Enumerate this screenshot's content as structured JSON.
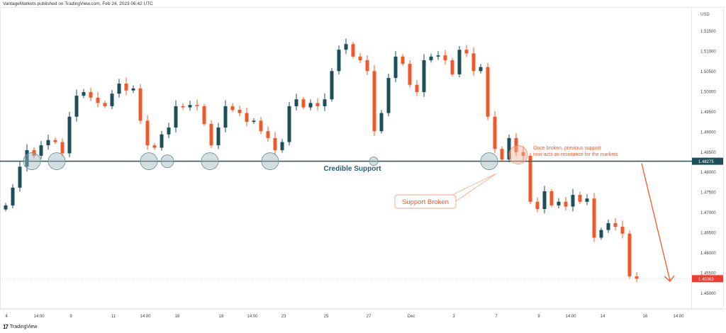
{
  "header": {
    "published": "VantageMarkets published on TradingView.com, Feb 24, 2023 06:42 UTC"
  },
  "footer": {
    "logo_text": "TradingView"
  },
  "colors": {
    "up": "#1d4f5b",
    "down": "#f0592a",
    "support_line": "#2b5d68",
    "annotation": "#f0592a",
    "circle_fill": "#9db7ba",
    "last_price_bg": "#f23b2f",
    "support_label_bg": "#1d4f5b"
  },
  "annotations": {
    "support_label": "Credible Support",
    "broken_label": "Support Broken",
    "resistance_note_line1": "Once broken, previous support",
    "resistance_note_line2": "now acts as resistance for the markets"
  },
  "chart_data": {
    "type": "candlestick",
    "title": "",
    "currency": "USD",
    "x_tick_labels": [
      "4",
      "14:00",
      "9",
      "11",
      "14:00",
      "16",
      "18",
      "14:00",
      "23",
      "25",
      "27",
      "Dec",
      "3",
      "7",
      "9",
      "14:00",
      "14",
      "16",
      "14:00"
    ],
    "y_tick_labels": [
      "1.51500",
      "1.51000",
      "1.50500",
      "1.50000",
      "1.49500",
      "1.49000",
      "1.48500",
      "1.48000",
      "1.47500",
      "1.47000",
      "1.46500",
      "1.46000",
      "1.45500",
      "1.45000"
    ],
    "ylim": [
      1.4465,
      1.5195
    ],
    "support_level": 1.48275,
    "support_level_label": "1.48275",
    "last_price": 1.45363,
    "last_price_label": "1.45363",
    "closes": [
      1.4718,
      1.4762,
      1.4814,
      1.4855,
      1.4841,
      1.4867,
      1.488,
      1.4875,
      1.4847,
      1.4938,
      1.499,
      1.4999,
      1.4985,
      1.4972,
      1.4964,
      1.4995,
      1.502,
      1.5003,
      1.5008,
      1.4928,
      1.4867,
      1.4861,
      1.4894,
      1.4911,
      1.4964,
      1.4961,
      1.4967,
      1.4964,
      1.492,
      1.4867,
      1.4911,
      1.4964,
      1.4955,
      1.4947,
      1.4925,
      1.4928,
      1.4902,
      1.4885,
      1.4855,
      1.4875,
      1.4964,
      1.4981,
      1.4961,
      1.4972,
      1.4964,
      1.4981,
      1.5051,
      1.5104,
      1.5118,
      1.5087,
      1.5078,
      1.5051,
      1.4902,
      1.4947,
      1.5034,
      1.5087,
      1.5069,
      1.5017,
      1.4999,
      1.5078,
      1.5087,
      1.509,
      1.5078,
      1.5043,
      1.5104,
      1.5095,
      1.5051,
      1.5061,
      1.4938,
      1.4858,
      1.4832,
      1.4885,
      1.485,
      1.4841,
      1.4727,
      1.4709,
      1.4753,
      1.4718,
      1.4727,
      1.4715,
      1.4744,
      1.4727,
      1.4735,
      1.4638,
      1.4657,
      1.4674,
      1.4665,
      1.4648,
      1.4542,
      1.4536
    ]
  }
}
